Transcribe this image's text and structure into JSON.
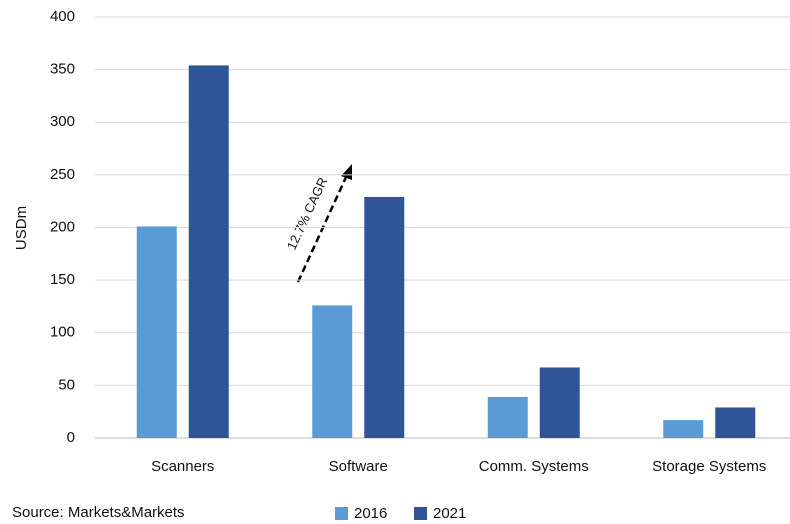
{
  "chart_data": {
    "type": "bar",
    "y_label": "USDm",
    "categories": [
      "Scanners",
      "Software",
      "Comm. Systems",
      "Storage Systems"
    ],
    "series": [
      {
        "name": "2016",
        "color": "#5b9bd5",
        "values": [
          201,
          126,
          39,
          17
        ]
      },
      {
        "name": "2021",
        "color": "#2f5597",
        "values": [
          354,
          229,
          67,
          29
        ]
      }
    ],
    "ylim": [
      0,
      400
    ],
    "yticks": [
      0,
      50,
      100,
      150,
      200,
      250,
      300,
      350,
      400
    ],
    "grid": true,
    "annotation": "12.7% CAGR",
    "source": "Source: Markets&Markets",
    "legend": "bottom"
  }
}
